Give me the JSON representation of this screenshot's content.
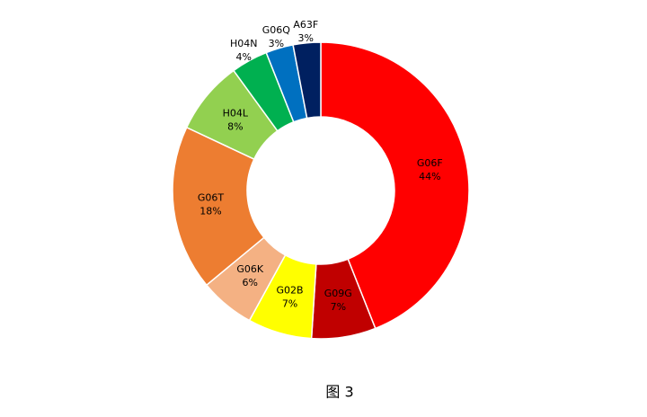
{
  "chart_data": {
    "type": "donut",
    "caption": "图 3",
    "categories": [
      "G06F",
      "G09G",
      "G02B",
      "G06K",
      "G06T",
      "H04L",
      "H04N",
      "G06Q",
      "A63F"
    ],
    "values": [
      44,
      7,
      7,
      6,
      18,
      8,
      4,
      3,
      3
    ],
    "value_labels": [
      "44%",
      "7%",
      "7%",
      "6%",
      "18%",
      "8%",
      "4%",
      "3%",
      "3%"
    ],
    "colors": [
      "#ff0000",
      "#c00000",
      "#ffff00",
      "#f4b183",
      "#ed7d31",
      "#92d050",
      "#00b050",
      "#0070c0",
      "#002060"
    ]
  }
}
